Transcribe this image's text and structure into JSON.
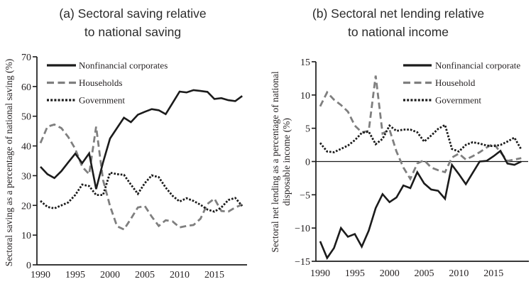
{
  "figure": {
    "background": "#ffffff",
    "text_color": "#231f20",
    "line_black": "#1b1b1b",
    "line_gray": "#7f7f7f"
  },
  "chart_data": [
    {
      "type": "line",
      "title": "(a) Sectoral saving relative\nto national saving",
      "ylabel": "Sectoral saving as a percentage of national saving (%)",
      "ylabel_lines": [
        "Sectoral saving as a percentage of national saving (%)"
      ],
      "xlim": [
        1990,
        2020
      ],
      "ylim": [
        0,
        70
      ],
      "xticks": [
        1990,
        1995,
        2000,
        2005,
        2010,
        2015
      ],
      "yticks": [
        0,
        10,
        20,
        30,
        40,
        50,
        60,
        70
      ],
      "grid": false,
      "legend_position": "top-left",
      "x": [
        1990,
        1991,
        1992,
        1993,
        1994,
        1995,
        1996,
        1997,
        1998,
        1999,
        2000,
        2001,
        2002,
        2003,
        2004,
        2005,
        2006,
        2007,
        2008,
        2009,
        2010,
        2011,
        2012,
        2013,
        2014,
        2015,
        2016,
        2017,
        2018,
        2019
      ],
      "series": [
        {
          "name": "Nonfinancial corporates",
          "style": "solid-black",
          "values": [
            33,
            30.5,
            29.2,
            31.5,
            34.5,
            37.4,
            34.2,
            37.5,
            25.5,
            34.5,
            42.5,
            46,
            49.5,
            48,
            50.5,
            51.5,
            52.4,
            52,
            50.7,
            54.5,
            58.3,
            58,
            58.8,
            58.5,
            58.2,
            55.8,
            56.1,
            55.4,
            55.1,
            56.8
          ]
        },
        {
          "name": "Households",
          "style": "dashed-gray",
          "values": [
            41,
            46.5,
            47.2,
            46,
            43,
            39,
            33,
            30.5,
            46.5,
            28.5,
            19.8,
            13,
            11.9,
            15.5,
            19.3,
            19.8,
            16.2,
            13.1,
            15,
            14.6,
            12.6,
            13.1,
            13.4,
            15.5,
            20.5,
            22.3,
            18.1,
            17.9,
            19.3,
            20.3
          ]
        },
        {
          "name": "Government",
          "style": "dotted-black",
          "values": [
            21.5,
            19.5,
            19,
            20,
            21,
            23.5,
            27,
            26.5,
            23.5,
            23.5,
            31,
            30.5,
            30.3,
            27,
            23.9,
            27.5,
            30.1,
            29.5,
            26,
            23.2,
            21.3,
            22.4,
            21.5,
            20.2,
            18.6,
            17.9,
            19.3,
            21.8,
            22.5,
            19.8
          ]
        }
      ]
    },
    {
      "type": "line",
      "title": "(b) Sectoral net lending relative\nto national income",
      "ylabel": "Sectoral net lending as a percentage of national disposable income (%)",
      "ylabel_lines": [
        "Sectoral net lending as a percentage of national",
        "disposable income (%)"
      ],
      "xlim": [
        1990,
        2020
      ],
      "ylim": [
        -15,
        15
      ],
      "xticks": [
        1990,
        1995,
        2000,
        2005,
        2010,
        2015
      ],
      "yticks": [
        -15,
        -10,
        -5,
        0,
        5,
        10,
        15
      ],
      "grid": false,
      "zero_line": true,
      "legend_position": "top-right",
      "x": [
        1990,
        1991,
        1992,
        1993,
        1994,
        1995,
        1996,
        1997,
        1998,
        1999,
        2000,
        2001,
        2002,
        2003,
        2004,
        2005,
        2006,
        2007,
        2008,
        2009,
        2010,
        2011,
        2012,
        2013,
        2014,
        2015,
        2016,
        2017,
        2018,
        2019
      ],
      "series": [
        {
          "name": "Nonfinancial corporate",
          "style": "solid-black",
          "values": [
            -12,
            -14.5,
            -13,
            -10,
            -11.3,
            -10.9,
            -12.8,
            -10.4,
            -7,
            -4.9,
            -6.1,
            -5.4,
            -3.6,
            -4,
            -1.6,
            -3.3,
            -4.2,
            -4.4,
            -5.6,
            -0.5,
            -1.9,
            -3.4,
            -1.7,
            0,
            0.1,
            0.8,
            1.6,
            -0.3,
            -0.5,
            0
          ]
        },
        {
          "name": "Household",
          "style": "dashed-gray",
          "values": [
            8.3,
            10.4,
            9.3,
            8.5,
            7.5,
            5.4,
            4.4,
            4.6,
            12.9,
            4.2,
            4.8,
            1.5,
            -0.9,
            -2.6,
            -0.3,
            0.2,
            -0.9,
            -1.3,
            -1.6,
            0.6,
            1.2,
            0.3,
            0.8,
            1.4,
            2.1,
            2.7,
            1.4,
            0.1,
            0.3,
            0.5
          ]
        },
        {
          "name": "Government",
          "style": "dotted-black",
          "values": [
            2.8,
            1.5,
            1.4,
            1.9,
            2.4,
            3.2,
            4.3,
            4.5,
            2.6,
            3.4,
            5.4,
            4.6,
            4.8,
            4.8,
            4.4,
            3,
            3.9,
            4.9,
            5.5,
            1.9,
            1.5,
            2.5,
            2.9,
            2.7,
            2.4,
            2.3,
            2.5,
            3,
            3.6,
            1.8
          ]
        }
      ]
    }
  ]
}
